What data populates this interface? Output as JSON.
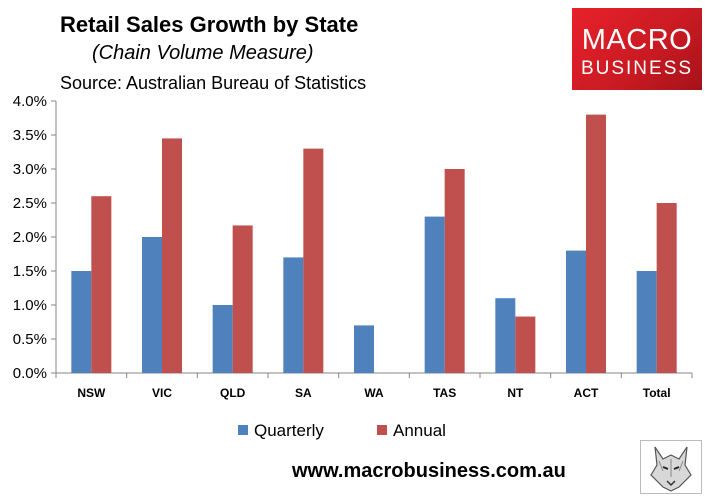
{
  "header": {
    "title": "Retail Sales Growth by State",
    "subtitle": "(Chain Volume Measure)",
    "source": "Source: Australian Bureau of Statistics"
  },
  "logo": {
    "line1": "MACRO",
    "line2": "BUSINESS",
    "icon": "wolf-icon"
  },
  "footer": {
    "website": "www.macrobusiness.com.au"
  },
  "colors": {
    "quarterly": "#4f81bd",
    "annual": "#c0504d",
    "logo": "#e8212b"
  },
  "chart_data": {
    "type": "bar",
    "title": "Retail Sales Growth by State",
    "subtitle": "(Chain Volume Measure)",
    "categories": [
      "NSW",
      "VIC",
      "QLD",
      "SA",
      "WA",
      "TAS",
      "NT",
      "ACT",
      "Total"
    ],
    "series": [
      {
        "name": "Quarterly",
        "values": [
          0.015,
          0.02,
          0.01,
          0.017,
          0.007,
          0.023,
          0.011,
          0.018,
          0.015
        ]
      },
      {
        "name": "Annual",
        "values": [
          0.026,
          0.0345,
          0.0217,
          0.033,
          0.0,
          0.03,
          0.0083,
          0.038,
          0.025
        ]
      }
    ],
    "ylim": [
      0,
      0.04
    ],
    "yticks": [
      0,
      0.005,
      0.01,
      0.015,
      0.02,
      0.025,
      0.03,
      0.035,
      0.04
    ],
    "ytick_labels": [
      "0.0%",
      "0.5%",
      "1.0%",
      "1.5%",
      "2.0%",
      "2.5%",
      "3.0%",
      "3.5%",
      "4.0%"
    ],
    "xlabel": "",
    "ylabel": "",
    "grid": false,
    "legend": "bottom"
  }
}
